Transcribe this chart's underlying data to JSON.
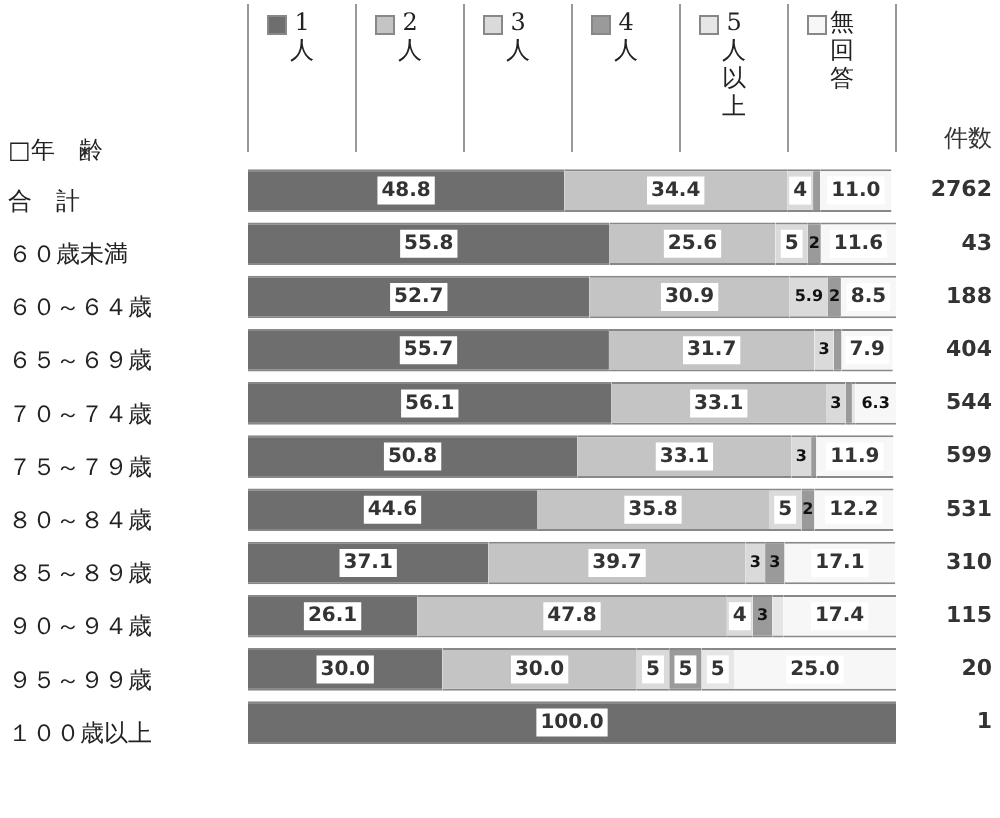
{
  "chart_data": {
    "type": "bar",
    "orientation": "horizontal",
    "stacked": true,
    "ylabel": "□年　齢",
    "legend": "top",
    "tick_labels": "y",
    "categories": [
      "合　計",
      "６０歳未満",
      "６０～６４歳",
      "６５～６９歳",
      "７０～７４歳",
      "７５～７９歳",
      "８０～８４歳",
      "８５～８９歳",
      "９０～９４歳",
      "９５～９９歳",
      "１００歳以上"
    ],
    "series": [
      {
        "name": "1人",
        "color": "#6e6e6e",
        "values": [
          48.8,
          55.8,
          52.7,
          55.7,
          56.1,
          50.8,
          44.6,
          37.1,
          26.1,
          30.0,
          100.0
        ],
        "value_labels": [
          "48.8",
          "55.8",
          "52.7",
          "55.7",
          "56.1",
          "50.8",
          "44.6",
          "37.1",
          "26.1",
          "30.0",
          "100.0"
        ]
      },
      {
        "name": "2人",
        "color": "#c4c4c4",
        "values": [
          34.4,
          25.6,
          30.9,
          31.7,
          33.1,
          33.1,
          35.8,
          39.7,
          47.8,
          30.0,
          0
        ],
        "value_labels": [
          "34.4",
          "25.6",
          "30.9",
          "31.7",
          "33.1",
          "33.1",
          "35.8",
          "39.7",
          "47.8",
          "30.0",
          null
        ]
      },
      {
        "name": "3人",
        "color": "#dadada",
        "values": [
          4,
          5,
          5.9,
          3,
          3,
          3,
          5,
          3,
          4,
          5,
          0
        ],
        "value_labels": [
          "4",
          "5",
          "5.9",
          "3",
          "3",
          "3",
          "5",
          "3",
          "4",
          "5",
          null
        ]
      },
      {
        "name": "4人",
        "color": "#9a9a9a",
        "values": [
          1.1,
          2,
          2,
          1.2,
          1.0,
          0.8,
          2,
          3,
          3,
          5,
          0
        ],
        "value_labels": [
          null,
          "2",
          "2",
          null,
          null,
          null,
          "2",
          "3",
          "3",
          "5",
          null
        ]
      },
      {
        "name": "5人以上",
        "color": "#e6e6e6",
        "values": [
          null,
          0,
          0,
          null,
          0.5,
          null,
          null,
          null,
          1.7,
          5,
          0
        ],
        "value_labels": [
          null,
          null,
          null,
          null,
          null,
          null,
          null,
          null,
          null,
          "5",
          null
        ]
      },
      {
        "name": "無回答",
        "color": "#f7f7f7",
        "values": [
          11.0,
          11.6,
          8.5,
          7.9,
          6.3,
          11.9,
          12.2,
          17.1,
          17.4,
          25.0,
          0
        ],
        "value_labels": [
          "11.0",
          "11.6",
          "8.5",
          "7.9",
          "6.3",
          "11.9",
          "12.2",
          "17.1",
          "17.4",
          "25.0",
          null
        ]
      }
    ],
    "annotations": [
      "件数",
      "2762",
      "43",
      "188",
      "404",
      "544",
      "599",
      "531",
      "310",
      "115",
      "20",
      "1"
    ]
  }
}
